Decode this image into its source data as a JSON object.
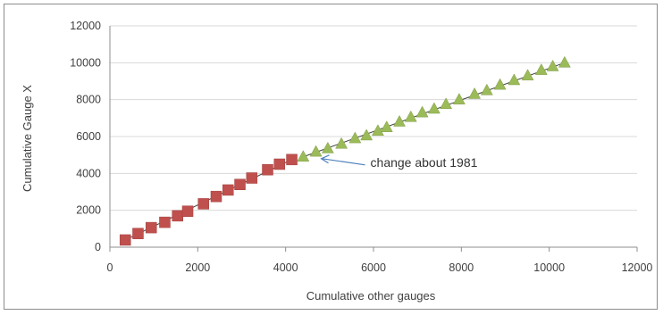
{
  "chart_data": {
    "type": "scatter",
    "xlabel": "Cumulative other gauges",
    "ylabel": "Cumulative Gauge X",
    "xlim": [
      0,
      12000
    ],
    "ylim": [
      0,
      12000
    ],
    "x_ticks": [
      "0",
      "2000",
      "4000",
      "6000",
      "8000",
      "10000",
      "12000"
    ],
    "y_ticks": [
      "0",
      "2000",
      "4000",
      "6000",
      "8000",
      "10000",
      "12000"
    ],
    "grid": "horizontal",
    "legend": "none",
    "colors": {
      "before": "#c0504d",
      "after": "#9bbb59",
      "trendline": "#404040",
      "arrow": "#4f81bd",
      "grid": "#d9d9d9"
    },
    "series": [
      {
        "marker": "square",
        "points": [
          [
            350,
            390
          ],
          [
            640,
            740
          ],
          [
            940,
            1060
          ],
          [
            1250,
            1350
          ],
          [
            1540,
            1700
          ],
          [
            1770,
            1950
          ],
          [
            2130,
            2350
          ],
          [
            2420,
            2750
          ],
          [
            2690,
            3100
          ],
          [
            2960,
            3400
          ],
          [
            3230,
            3750
          ],
          [
            3590,
            4200
          ],
          [
            3860,
            4500
          ],
          [
            4140,
            4750
          ]
        ]
      },
      {
        "marker": "triangle",
        "points": [
          [
            4400,
            4900
          ],
          [
            4690,
            5170
          ],
          [
            4960,
            5350
          ],
          [
            5270,
            5600
          ],
          [
            5580,
            5900
          ],
          [
            5840,
            6050
          ],
          [
            6100,
            6300
          ],
          [
            6300,
            6500
          ],
          [
            6590,
            6800
          ],
          [
            6850,
            7050
          ],
          [
            7110,
            7300
          ],
          [
            7380,
            7500
          ],
          [
            7650,
            7750
          ],
          [
            7950,
            8000
          ],
          [
            8300,
            8300
          ],
          [
            8580,
            8500
          ],
          [
            8880,
            8800
          ],
          [
            9200,
            9050
          ],
          [
            9510,
            9300
          ],
          [
            9820,
            9600
          ],
          [
            10080,
            9800
          ],
          [
            10350,
            10000
          ]
        ]
      }
    ],
    "trendlines": [
      {
        "from": [
          350,
          390
        ],
        "to": [
          4140,
          4750
        ]
      },
      {
        "from": [
          4400,
          4900
        ],
        "to": [
          10350,
          10000
        ]
      }
    ],
    "annotations": [
      {
        "text": "change about 1981",
        "points_to": [
          4750,
          4800
        ]
      }
    ]
  }
}
